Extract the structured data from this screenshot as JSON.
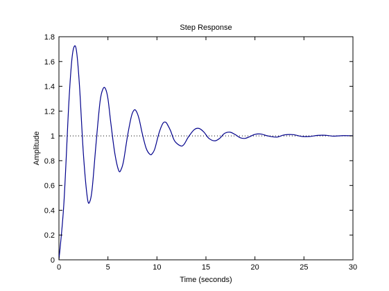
{
  "chart_data": {
    "type": "line",
    "title": "Step Response",
    "xlabel": "Time (seconds)",
    "ylabel": "Amplitude",
    "xlim": [
      0,
      30
    ],
    "ylim": [
      0,
      1.8
    ],
    "xticks": [
      0,
      5,
      10,
      15,
      20,
      25,
      30
    ],
    "xtick_labels": [
      "0",
      "5",
      "10",
      "15",
      "20",
      "25",
      "30"
    ],
    "yticks": [
      0,
      0.2,
      0.4,
      0.6,
      0.8,
      1,
      1.2,
      1.4,
      1.6,
      1.8
    ],
    "ytick_labels": [
      "0",
      "0.2",
      "0.4",
      "0.6",
      "0.8",
      "1",
      "1.2",
      "1.4",
      "1.6",
      "1.8"
    ],
    "grid": false,
    "colors": {
      "series": "#00008b",
      "reference": "#000000"
    },
    "reference_line": {
      "y": 1,
      "style": "dotted"
    },
    "series": [
      {
        "x": [
          0,
          0.5,
          1.0,
          1.3,
          1.55,
          1.8,
          2.1,
          2.5,
          2.9,
          3.15,
          3.4,
          3.8,
          4.2,
          4.5,
          4.75,
          5.0,
          5.3,
          5.7,
          6.1,
          6.35,
          6.6,
          7.0,
          7.4,
          7.7,
          7.95,
          8.2,
          8.5,
          8.9,
          9.3,
          9.55,
          9.8,
          10.2,
          10.6,
          10.9,
          11.15,
          11.4,
          11.8,
          12.4,
          12.75,
          13.2,
          13.8,
          14.3,
          14.8,
          15.3,
          15.9,
          16.4,
          16.9,
          17.45,
          18.0,
          18.5,
          19.0,
          19.5,
          20.0,
          20.6,
          21.3,
          22.2,
          23.0,
          23.9,
          24.8,
          25.6,
          26.4,
          27.2,
          28.0,
          29.0,
          30.0
        ],
        "y": [
          0,
          0.45,
          1.25,
          1.6,
          1.72,
          1.68,
          1.4,
          0.85,
          0.5,
          0.47,
          0.58,
          0.95,
          1.28,
          1.38,
          1.38,
          1.3,
          1.1,
          0.86,
          0.72,
          0.73,
          0.8,
          1.0,
          1.16,
          1.21,
          1.19,
          1.13,
          1.02,
          0.9,
          0.85,
          0.86,
          0.9,
          1.02,
          1.1,
          1.11,
          1.08,
          1.04,
          0.96,
          0.92,
          0.93,
          0.99,
          1.05,
          1.06,
          1.03,
          0.98,
          0.96,
          0.98,
          1.02,
          1.03,
          1.01,
          0.985,
          0.98,
          0.995,
          1.012,
          1.015,
          1.0,
          0.99,
          1.008,
          1.01,
          0.995,
          0.995,
          1.004,
          1.005,
          0.998,
          1.002,
          1.001
        ]
      }
    ]
  }
}
